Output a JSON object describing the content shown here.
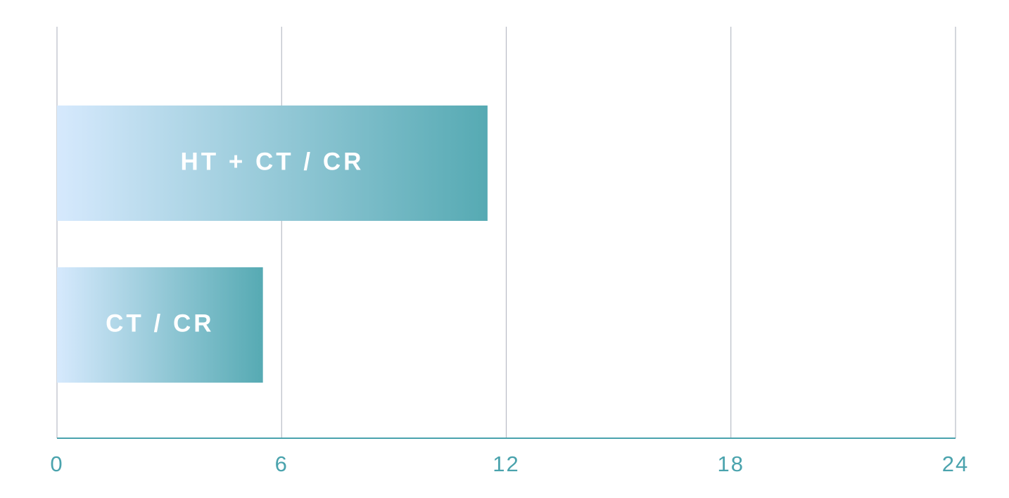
{
  "chart_data": {
    "type": "bar",
    "orientation": "horizontal",
    "categories": [
      "HT + CT / CR",
      "CT / CR"
    ],
    "values": [
      11.5,
      5.5
    ],
    "gradient": [
      "#d6e9fd",
      "#56aab3"
    ],
    "xlim": [
      0,
      24
    ],
    "xticks": [
      0,
      6,
      12,
      18,
      24
    ],
    "grid": true
  }
}
